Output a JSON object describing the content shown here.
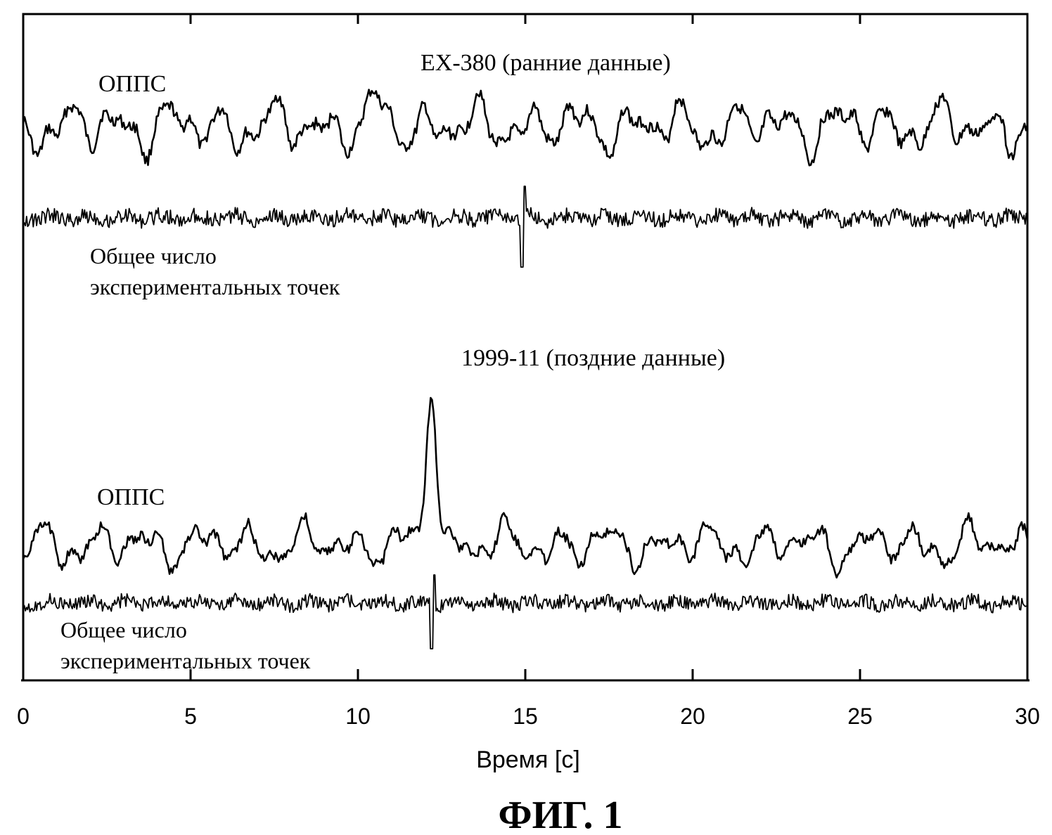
{
  "chart_data": {
    "type": "line",
    "xlabel": "Время [с]",
    "xlim": [
      0,
      30
    ],
    "x_ticks": [
      0,
      5,
      10,
      15,
      20,
      25,
      30
    ],
    "x_tick_labels": [
      "0",
      "5",
      "10",
      "15",
      "20",
      "25",
      "30"
    ],
    "grid": false,
    "panels": [
      {
        "title": "EX-380 (ранние данные)",
        "series": [
          {
            "name": "ОППС",
            "peak_x": 10.6
          },
          {
            "name": "Общее число\nэкспериментальных точек",
            "spike_x": 14.9
          }
        ]
      },
      {
        "title": "1999-11 (поздние данные)",
        "series": [
          {
            "name": "ОППС",
            "peak_x": 12.2
          },
          {
            "name": "Общее число\nэкспериментальных точек",
            "spike_x": 12.2
          }
        ]
      }
    ]
  },
  "figure_label": "ФИГ. 1"
}
